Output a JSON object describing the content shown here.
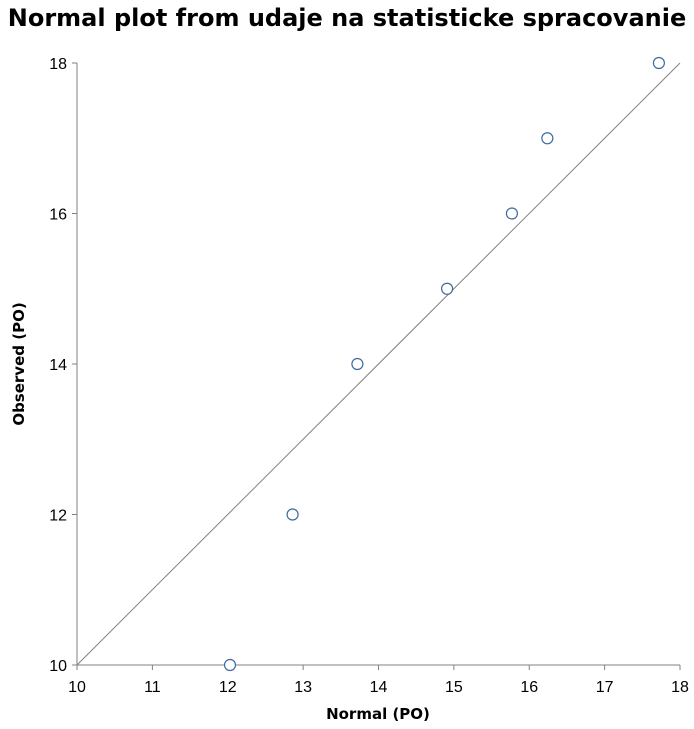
{
  "chart_data": {
    "type": "scatter",
    "title": "Normal plot from udaje na statisticke spracovanie",
    "xlabel": "Normal (PO)",
    "ylabel": "Observed (PO)",
    "xlim": [
      10,
      18
    ],
    "ylim": [
      10,
      18
    ],
    "xticks": [
      "10",
      "11",
      "12",
      "13",
      "14",
      "15",
      "16",
      "17",
      "18"
    ],
    "yticks": [
      "10",
      "12",
      "14",
      "16",
      "18"
    ],
    "grid": false,
    "legend": "none",
    "reference_line": {
      "from": [
        10,
        10
      ],
      "to": [
        18,
        18
      ]
    },
    "points": [
      {
        "x": 12.03,
        "y": 10
      },
      {
        "x": 12.86,
        "y": 12
      },
      {
        "x": 13.72,
        "y": 14
      },
      {
        "x": 14.91,
        "y": 15
      },
      {
        "x": 15.77,
        "y": 16
      },
      {
        "x": 16.24,
        "y": 17
      },
      {
        "x": 17.72,
        "y": 18
      }
    ],
    "colors": {
      "marker": "#3e6aa1",
      "line": "#808080",
      "axis": "#808080"
    }
  }
}
